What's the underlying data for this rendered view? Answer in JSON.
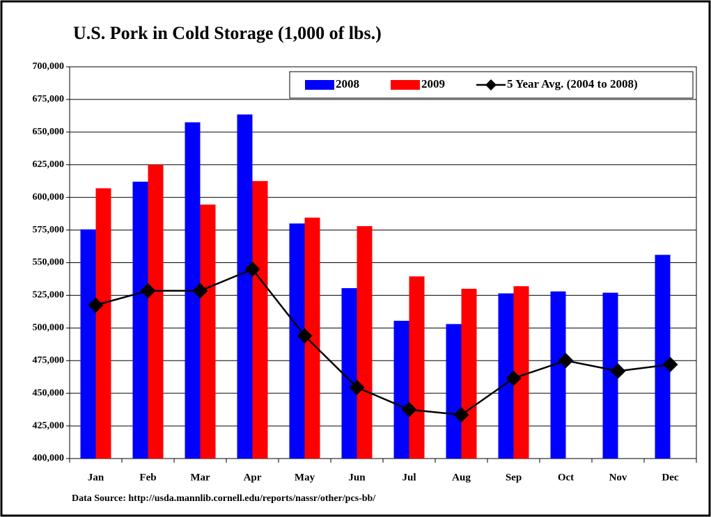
{
  "chart_data": {
    "type": "bar",
    "title": "U.S. Pork in Cold Storage (1,000 of lbs.)",
    "source": "Data Source: http://usda.mannlib.cornell.edu/reports/nassr/other/pcs-bb/",
    "categories": [
      "Jan",
      "Feb",
      "Mar",
      "Apr",
      "May",
      "Jun",
      "Jul",
      "Aug",
      "Sep",
      "Oct",
      "Nov",
      "Dec"
    ],
    "series": [
      {
        "name": "2008",
        "type": "bar",
        "color": "#0000ff",
        "values": [
          575500,
          612000,
          657500,
          663500,
          580000,
          530500,
          505500,
          503000,
          526500,
          528000,
          527000,
          556000
        ]
      },
      {
        "name": "2009",
        "type": "bar",
        "color": "#ff0000",
        "values": [
          607000,
          625000,
          594500,
          612500,
          584500,
          578000,
          539500,
          530000,
          532000,
          null,
          null,
          null
        ]
      },
      {
        "name": "5 Year Avg. (2004 to 2008)",
        "type": "line",
        "color": "#000000",
        "values": [
          517500,
          528500,
          528500,
          545000,
          494000,
          454500,
          437500,
          433500,
          461500,
          475000,
          467000,
          472000
        ]
      }
    ],
    "ylim": [
      400000,
      700000
    ],
    "yticks": [
      {
        "value": 400000,
        "label": "400,000"
      },
      {
        "value": 425000,
        "label": "425,000"
      },
      {
        "value": 450000,
        "label": "450,000"
      },
      {
        "value": 475000,
        "label": "475,000"
      },
      {
        "value": 500000,
        "label": "500,000"
      },
      {
        "value": 525000,
        "label": "525,000"
      },
      {
        "value": 550000,
        "label": "550,000"
      },
      {
        "value": 575000,
        "label": "575,000"
      },
      {
        "value": 600000,
        "label": "600,000"
      },
      {
        "value": 625000,
        "label": "625,000"
      },
      {
        "value": 650000,
        "label": "650,000"
      },
      {
        "value": 675000,
        "label": "675,000"
      },
      {
        "value": 700000,
        "label": "700,000"
      }
    ],
    "grid": true,
    "legend": "top-right"
  }
}
